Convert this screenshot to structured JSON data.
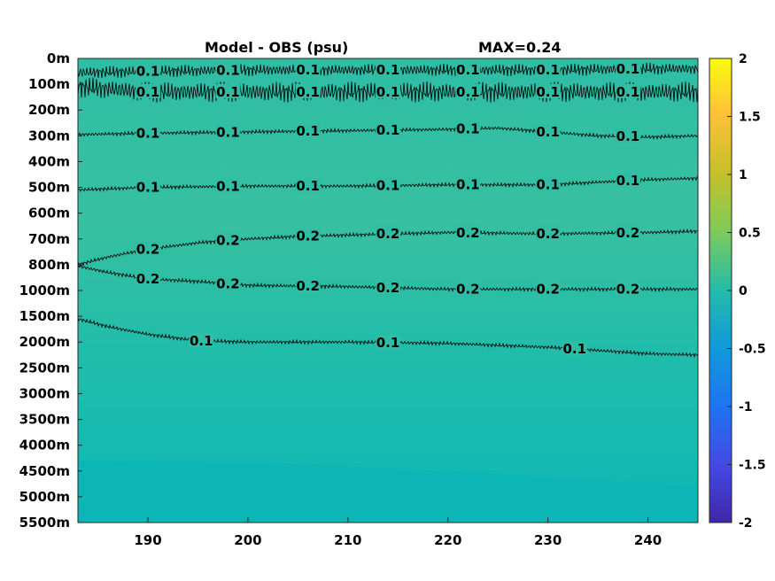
{
  "chart_data": {
    "type": "heatmap",
    "title_left": "Model - OBS (psu)",
    "title_right": "MAX=0.24",
    "x": {
      "range": [
        183,
        245
      ],
      "ticks": [
        190,
        200,
        210,
        220,
        230,
        240
      ],
      "tick_labels": [
        "190",
        "200",
        "210",
        "220",
        "230",
        "240"
      ]
    },
    "y": {
      "tick_labels": [
        "0m",
        "100m",
        "200m",
        "300m",
        "400m",
        "500m",
        "600m",
        "700m",
        "800m",
        "1000m",
        "1500m",
        "2000m",
        "2500m",
        "3000m",
        "3500m",
        "4000m",
        "4500m",
        "5000m",
        "5500m"
      ]
    },
    "colorbar": {
      "range": [
        -2,
        2
      ],
      "colormap": "parula",
      "ticks": [
        2,
        1.5,
        1,
        0.5,
        0,
        -0.5,
        -1,
        -1.5,
        -2
      ],
      "tick_labels": [
        "2",
        "1.5",
        "1",
        "0.5",
        "0",
        "-0.5",
        "-1",
        "-1.5",
        "-2"
      ]
    },
    "fill_colors": {
      "high": "#37c0a0",
      "mid": "#22bdaa",
      "low": "#0db8b6"
    },
    "contours": [
      {
        "level": 0.1,
        "label": "0.1",
        "depth_index": 0.5,
        "points": [
          [
            183,
            0.55
          ],
          [
            190,
            0.5
          ],
          [
            200,
            0.45
          ],
          [
            210,
            0.45
          ],
          [
            220,
            0.45
          ],
          [
            230,
            0.45
          ],
          [
            240,
            0.4
          ],
          [
            245,
            0.4
          ]
        ]
      },
      {
        "level": 0.1,
        "label": "0.1",
        "depth_index": 1.3,
        "points": [
          [
            183,
            1.1
          ],
          [
            190,
            1.3
          ],
          [
            200,
            1.3
          ],
          [
            210,
            1.3
          ],
          [
            220,
            1.3
          ],
          [
            230,
            1.3
          ],
          [
            240,
            1.3
          ],
          [
            245,
            1.3
          ]
        ]
      },
      {
        "level": 0.1,
        "label": "0.1",
        "depth_index": 2.9,
        "points": [
          [
            183,
            2.95
          ],
          [
            190,
            2.9
          ],
          [
            200,
            2.85
          ],
          [
            210,
            2.8
          ],
          [
            220,
            2.75
          ],
          [
            225,
            2.7
          ],
          [
            230,
            2.85
          ],
          [
            235,
            3.0
          ],
          [
            240,
            3.05
          ],
          [
            245,
            3.0
          ]
        ]
      },
      {
        "level": 0.1,
        "label": "0.1",
        "depth_index": 5.0,
        "points": [
          [
            183,
            5.1
          ],
          [
            190,
            5.0
          ],
          [
            200,
            4.95
          ],
          [
            210,
            4.95
          ],
          [
            220,
            4.9
          ],
          [
            230,
            4.9
          ],
          [
            235,
            4.8
          ],
          [
            240,
            4.7
          ],
          [
            245,
            4.65
          ]
        ]
      },
      {
        "level": 0.2,
        "label": "0.2",
        "depth_index": 7.0,
        "points": [
          [
            183,
            8.0
          ],
          [
            186,
            7.7
          ],
          [
            190,
            7.4
          ],
          [
            195,
            7.15
          ],
          [
            200,
            7.0
          ],
          [
            205,
            6.9
          ],
          [
            210,
            6.85
          ],
          [
            215,
            6.8
          ],
          [
            220,
            6.75
          ],
          [
            230,
            6.8
          ],
          [
            240,
            6.75
          ],
          [
            245,
            6.7
          ]
        ]
      },
      {
        "level": 0.2,
        "label": "0.2",
        "depth_index": 8.9,
        "points": [
          [
            183,
            8.05
          ],
          [
            186,
            8.3
          ],
          [
            190,
            8.55
          ],
          [
            195,
            8.65
          ],
          [
            200,
            8.8
          ],
          [
            210,
            8.85
          ],
          [
            220,
            8.95
          ],
          [
            230,
            8.95
          ],
          [
            240,
            8.95
          ],
          [
            245,
            8.95
          ]
        ]
      },
      {
        "level": 0.1,
        "label": "0.1",
        "depth_index": 10.8,
        "points": [
          [
            183,
            10.1
          ],
          [
            186,
            10.4
          ],
          [
            190,
            10.7
          ],
          [
            195,
            10.95
          ],
          [
            200,
            11.0
          ],
          [
            210,
            11.0
          ],
          [
            220,
            11.05
          ],
          [
            230,
            11.2
          ],
          [
            240,
            11.45
          ],
          [
            245,
            11.5
          ]
        ]
      }
    ]
  }
}
